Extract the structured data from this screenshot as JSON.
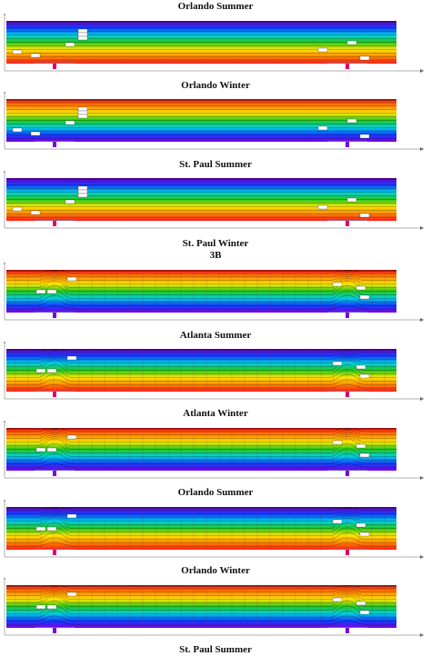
{
  "titles": [
    "Orlando Summer",
    "Orlando Winter",
    "St. Paul Summer",
    "St. Paul Winter",
    "3B",
    "Atlanta Summer",
    "Atlanta Winter",
    "Orlando Summer",
    "Orlando Winter",
    "St. Paul Summer"
  ],
  "colors": {
    "hot": "#ff1a1a",
    "orange": "#ff8a00",
    "yellow": "#ffe600",
    "green": "#22c81e",
    "cyan": "#00d0e0",
    "blue": "#1040ff",
    "violet": "#7a00e0",
    "magenta": "#e0006a",
    "frame": "#7090c0"
  },
  "panels": [
    {
      "id": "panel-1",
      "style": "flat",
      "order": "cold-top"
    },
    {
      "id": "panel-2",
      "style": "flat",
      "order": "hot-top"
    },
    {
      "id": "panel-3",
      "style": "flat",
      "order": "cold-top"
    },
    {
      "id": "panel-4",
      "style": "bump",
      "order": "hot-top"
    },
    {
      "id": "panel-5",
      "style": "bump",
      "order": "cold-top"
    },
    {
      "id": "panel-6",
      "style": "bump",
      "order": "hot-top"
    },
    {
      "id": "panel-7",
      "style": "bump",
      "order": "cold-top"
    },
    {
      "id": "panel-8",
      "style": "bump",
      "order": "hot-top"
    }
  ]
}
